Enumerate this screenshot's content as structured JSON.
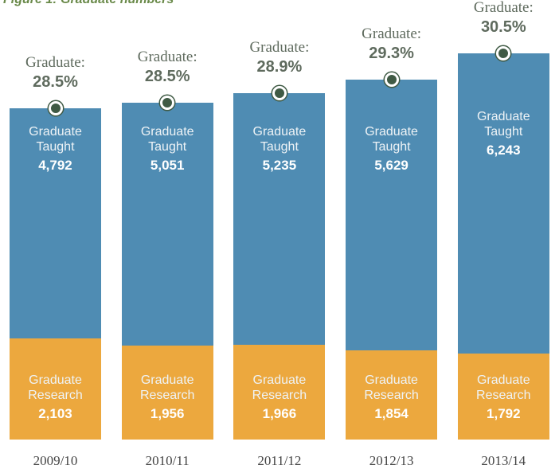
{
  "chart_data": {
    "type": "stacked_bar",
    "title": "Figure 1: Graduate numbers",
    "categories": [
      "2009/10",
      "2010/11",
      "2011/12",
      "2012/13",
      "2013/14"
    ],
    "series": [
      {
        "name": "Graduate Research",
        "color": "#eca83e",
        "values": [
          2103,
          1956,
          1966,
          1854,
          1792
        ],
        "value_labels": [
          "2,103",
          "1,956",
          "1,966",
          "1,854",
          "1,792"
        ]
      },
      {
        "name": "Graduate Taught",
        "color": "#4f8cb3",
        "values": [
          4792,
          5051,
          5235,
          5629,
          6243
        ],
        "value_labels": [
          "4,792",
          "5,051",
          "5,235",
          "5,629",
          "6,243"
        ]
      }
    ],
    "graduate_share": {
      "label": "Graduate:",
      "values": [
        28.5,
        28.5,
        28.9,
        29.3,
        30.5
      ],
      "value_labels": [
        "28.5%",
        "28.5%",
        "28.9%",
        "29.3%",
        "30.5%"
      ]
    }
  }
}
